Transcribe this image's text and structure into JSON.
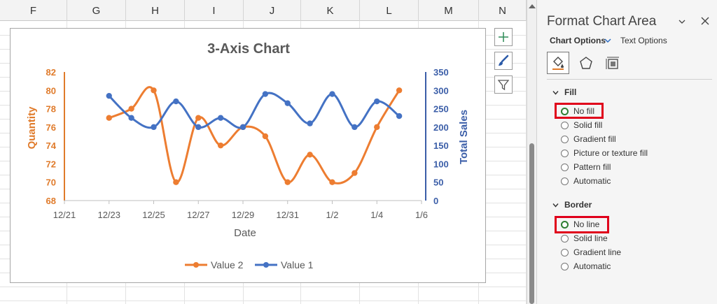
{
  "sheet": {
    "columns": [
      {
        "label": "F",
        "width": 96
      },
      {
        "label": "G",
        "width": 84
      },
      {
        "label": "H",
        "width": 84
      },
      {
        "label": "I",
        "width": 84
      },
      {
        "label": "J",
        "width": 82
      },
      {
        "label": "K",
        "width": 84
      },
      {
        "label": "L",
        "width": 84
      },
      {
        "label": "M",
        "width": 86
      },
      {
        "label": "N",
        "width": 68
      }
    ]
  },
  "chart_data": {
    "type": "line",
    "title": "3-Axis Chart",
    "xlabel": "Date",
    "x_ticks": [
      "12/21",
      "12/23",
      "12/25",
      "12/27",
      "12/29",
      "12/31",
      "1/2",
      "1/4",
      "1/6"
    ],
    "y_left": {
      "label": "Quantity",
      "range": [
        68,
        82
      ],
      "ticks": [
        "68",
        "70",
        "72",
        "74",
        "76",
        "78",
        "80",
        "82"
      ],
      "color": "#e07b2b"
    },
    "y_right": {
      "label": "Total Sales",
      "range": [
        0,
        350
      ],
      "ticks": [
        "0",
        "50",
        "100",
        "150",
        "200",
        "250",
        "300",
        "350"
      ],
      "color": "#3b5ea8"
    },
    "x_range": [
      "12/21",
      "1/6"
    ],
    "grid": false,
    "legend_position": "bottom",
    "smoothed": true,
    "series": [
      {
        "name": "Value 2",
        "axis": "left",
        "color": "#ed7d31",
        "x": [
          "12/23",
          "12/24",
          "12/25",
          "12/26",
          "12/27",
          "12/28",
          "12/29",
          "12/30",
          "12/31",
          "1/1",
          "1/2",
          "1/3",
          "1/4",
          "1/5"
        ],
        "values": [
          77,
          78,
          80,
          70,
          77,
          74,
          76,
          75,
          70,
          73,
          70,
          71,
          76,
          80
        ]
      },
      {
        "name": "Value 1",
        "axis": "right",
        "color": "#4472c4",
        "x": [
          "12/23",
          "12/24",
          "12/25",
          "12/26",
          "12/27",
          "12/28",
          "12/29",
          "12/30",
          "12/31",
          "1/1",
          "1/2",
          "1/3",
          "1/4",
          "1/5"
        ],
        "values": [
          285,
          225,
          200,
          270,
          200,
          225,
          200,
          290,
          265,
          210,
          290,
          200,
          270,
          230
        ]
      }
    ]
  },
  "pane": {
    "title": "Format Chart Area",
    "tab_chart_options": "Chart Options",
    "tab_text_options": "Text Options",
    "fill_section": "Fill",
    "fill_options": [
      "No fill",
      "Solid fill",
      "Gradient fill",
      "Picture or texture fill",
      "Pattern fill",
      "Automatic"
    ],
    "fill_selected": "No fill",
    "border_section": "Border",
    "border_options": [
      "No line",
      "Solid line",
      "Gradient line",
      "Automatic"
    ],
    "border_selected": "No line",
    "highlight_color": "#e0001b"
  }
}
